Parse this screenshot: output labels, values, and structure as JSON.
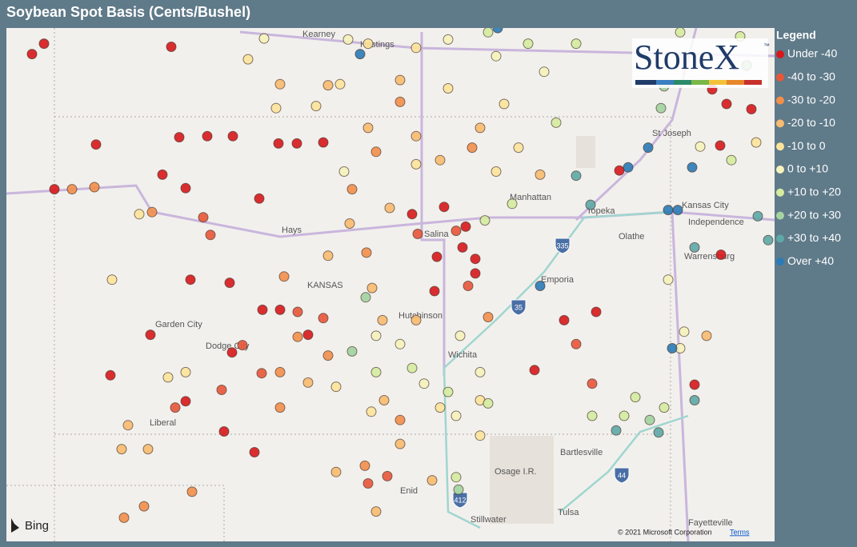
{
  "header": {
    "title": "Soybean Spot Basis (Cents/Bushel)"
  },
  "legend": {
    "title": "Legend",
    "items": [
      {
        "label": "Under -40",
        "color": "#d7191c"
      },
      {
        "label": "-40 to -30",
        "color": "#e8563a"
      },
      {
        "label": "-30 to -20",
        "color": "#f28f4b"
      },
      {
        "label": "-20 to -10",
        "color": "#f8bb6f"
      },
      {
        "label": "-10 to 0",
        "color": "#fde49a"
      },
      {
        "label": "0 to +10",
        "color": "#f6f3bd"
      },
      {
        "label": "+10 to +20",
        "color": "#d5ec9f"
      },
      {
        "label": "+20 to +30",
        "color": "#a3d3a0"
      },
      {
        "label": "+30 to +40",
        "color": "#5ea8a7"
      },
      {
        "label": "Over +40",
        "color": "#2b7bb6"
      }
    ]
  },
  "logo": {
    "text": "StoneX",
    "mark": "™"
  },
  "places": [
    "Kearney",
    "Hastings",
    "St Joseph",
    "Manhattan",
    "Topeka",
    "Kansas City",
    "Independence",
    "Hays",
    "Salina",
    "Olathe",
    "KANSAS",
    "Warrensburg",
    "Emporia",
    "Hutchinson",
    "Garden City",
    "Dodge City",
    "Wichita",
    "Liberal",
    "Bartlesville",
    "Osage I.R.",
    "Enid",
    "Tulsa",
    "Stillwater",
    "Fayetteville"
  ],
  "shields": [
    "335",
    "35",
    "44",
    "412"
  ],
  "attribution": {
    "provider": "Bing",
    "copyright": "© 2021 Microsoft Corporation",
    "terms": "Terms"
  },
  "points": [
    {
      "lon": -100.54,
      "lat": 40.67,
      "class": 0
    },
    {
      "lon": -102.28,
      "lat": 40.6,
      "class": 0
    },
    {
      "lon": -102.13,
      "lat": 40.7,
      "class": 0
    },
    {
      "lon": -100.44,
      "lat": 39.8,
      "class": 0
    },
    {
      "lon": -100.09,
      "lat": 39.81,
      "class": 0
    },
    {
      "lon": -99.77,
      "lat": 39.81,
      "class": 0
    },
    {
      "lon": -99.2,
      "lat": 39.74,
      "class": 0
    },
    {
      "lon": -98.97,
      "lat": 39.74,
      "class": 0
    },
    {
      "lon": -98.64,
      "lat": 39.75,
      "class": 0
    },
    {
      "lon": -100.65,
      "lat": 39.44,
      "class": 0
    },
    {
      "lon": -100.36,
      "lat": 39.31,
      "class": 0
    },
    {
      "lon": -99.44,
      "lat": 39.21,
      "class": 0
    },
    {
      "lon": -97.13,
      "lat": 39.13,
      "class": 0
    },
    {
      "lon": -97.53,
      "lat": 39.06,
      "class": 0
    },
    {
      "lon": -96.86,
      "lat": 38.94,
      "class": 0
    },
    {
      "lon": -97.22,
      "lat": 38.65,
      "class": 0
    },
    {
      "lon": -96.9,
      "lat": 38.74,
      "class": 0
    },
    {
      "lon": -96.74,
      "lat": 38.63,
      "class": 0
    },
    {
      "lon": -96.74,
      "lat": 38.49,
      "class": 0
    },
    {
      "lon": -100.3,
      "lat": 38.43,
      "class": 0
    },
    {
      "lon": -99.81,
      "lat": 38.4,
      "class": 0
    },
    {
      "lon": -99.4,
      "lat": 38.14,
      "class": 0
    },
    {
      "lon": -99.18,
      "lat": 38.14,
      "class": 0
    },
    {
      "lon": -98.83,
      "lat": 37.9,
      "class": 0
    },
    {
      "lon": -99.78,
      "lat": 37.73,
      "class": 0
    },
    {
      "lon": -100.36,
      "lat": 37.26,
      "class": 0
    },
    {
      "lon": -99.88,
      "lat": 36.97,
      "class": 0
    },
    {
      "lon": -100.8,
      "lat": 37.9,
      "class": 0
    },
    {
      "lon": -101.3,
      "lat": 37.51,
      "class": 0
    },
    {
      "lon": -93.78,
      "lat": 40.26,
      "class": 0
    },
    {
      "lon": -93.6,
      "lat": 40.12,
      "class": 0
    },
    {
      "lon": -93.29,
      "lat": 40.07,
      "class": 0
    },
    {
      "lon": -93.68,
      "lat": 39.72,
      "class": 0
    },
    {
      "lon": -95.23,
      "lat": 38.12,
      "class": 0
    },
    {
      "lon": -95.63,
      "lat": 38.04,
      "class": 0
    },
    {
      "lon": -96.0,
      "lat": 37.56,
      "class": 0
    },
    {
      "lon": -99.5,
      "lat": 36.77,
      "class": 0
    },
    {
      "lon": -94.94,
      "lat": 39.48,
      "class": 0
    },
    {
      "lon": -93.67,
      "lat": 38.67,
      "class": 0
    },
    {
      "lon": -94.0,
      "lat": 37.42,
      "class": 0
    },
    {
      "lon": -102.0,
      "lat": 39.3,
      "class": 0
    },
    {
      "lon": -101.48,
      "lat": 39.73,
      "class": 0
    },
    {
      "lon": -97.25,
      "lat": 38.32,
      "class": 0
    },
    {
      "lon": -100.14,
      "lat": 39.03,
      "class": 1
    },
    {
      "lon": -100.05,
      "lat": 38.86,
      "class": 1
    },
    {
      "lon": -98.64,
      "lat": 38.06,
      "class": 1
    },
    {
      "lon": -98.96,
      "lat": 38.12,
      "class": 1
    },
    {
      "lon": -99.65,
      "lat": 37.8,
      "class": 1
    },
    {
      "lon": -99.91,
      "lat": 37.37,
      "class": 1
    },
    {
      "lon": -99.41,
      "lat": 37.53,
      "class": 1
    },
    {
      "lon": -98.08,
      "lat": 36.47,
      "class": 1
    },
    {
      "lon": -95.48,
      "lat": 37.81,
      "class": 1
    },
    {
      "lon": -95.28,
      "lat": 37.43,
      "class": 1
    },
    {
      "lon": -96.98,
      "lat": 38.9,
      "class": 1
    },
    {
      "lon": -96.83,
      "lat": 38.37,
      "class": 1
    },
    {
      "lon": -97.84,
      "lat": 36.54,
      "class": 1
    },
    {
      "lon": -97.46,
      "lat": 38.87,
      "class": 1
    },
    {
      "lon": -100.49,
      "lat": 37.2,
      "class": 1
    },
    {
      "lon": -100.78,
      "lat": 39.08,
      "class": 2
    },
    {
      "lon": -101.5,
      "lat": 39.32,
      "class": 2
    },
    {
      "lon": -101.78,
      "lat": 39.3,
      "class": 2
    },
    {
      "lon": -98.1,
      "lat": 38.69,
      "class": 2
    },
    {
      "lon": -98.96,
      "lat": 37.88,
      "class": 2
    },
    {
      "lon": -99.18,
      "lat": 37.54,
      "class": 2
    },
    {
      "lon": -99.18,
      "lat": 37.2,
      "class": 2
    },
    {
      "lon": -100.28,
      "lat": 36.39,
      "class": 2
    },
    {
      "lon": -101.13,
      "lat": 36.14,
      "class": 2
    },
    {
      "lon": -100.88,
      "lat": 36.25,
      "class": 2
    },
    {
      "lon": -98.12,
      "lat": 36.64,
      "class": 2
    },
    {
      "lon": -97.68,
      "lat": 37.08,
      "class": 2
    },
    {
      "lon": -98.58,
      "lat": 37.7,
      "class": 2
    },
    {
      "lon": -99.13,
      "lat": 38.46,
      "class": 2
    },
    {
      "lon": -97.98,
      "lat": 39.66,
      "class": 2
    },
    {
      "lon": -97.68,
      "lat": 40.14,
      "class": 2
    },
    {
      "lon": -98.28,
      "lat": 39.3,
      "class": 2
    },
    {
      "lon": -96.78,
      "lat": 39.7,
      "class": 2
    },
    {
      "lon": -96.58,
      "lat": 38.07,
      "class": 2
    },
    {
      "lon": -99.18,
      "lat": 40.31,
      "class": 3
    },
    {
      "lon": -98.58,
      "lat": 40.3,
      "class": 3
    },
    {
      "lon": -97.68,
      "lat": 40.35,
      "class": 3
    },
    {
      "lon": -98.08,
      "lat": 39.89,
      "class": 3
    },
    {
      "lon": -97.48,
      "lat": 39.81,
      "class": 3
    },
    {
      "lon": -97.18,
      "lat": 39.58,
      "class": 3
    },
    {
      "lon": -96.68,
      "lat": 39.89,
      "class": 3
    },
    {
      "lon": -95.93,
      "lat": 39.44,
      "class": 3
    },
    {
      "lon": -97.81,
      "lat": 39.12,
      "class": 3
    },
    {
      "lon": -98.31,
      "lat": 38.97,
      "class": 3
    },
    {
      "lon": -98.58,
      "lat": 38.66,
      "class": 3
    },
    {
      "lon": -98.03,
      "lat": 38.35,
      "class": 3
    },
    {
      "lon": -97.9,
      "lat": 38.04,
      "class": 3
    },
    {
      "lon": -97.48,
      "lat": 38.04,
      "class": 3
    },
    {
      "lon": -97.88,
      "lat": 37.27,
      "class": 3
    },
    {
      "lon": -97.68,
      "lat": 36.85,
      "class": 3
    },
    {
      "lon": -97.28,
      "lat": 36.5,
      "class": 3
    },
    {
      "lon": -97.98,
      "lat": 36.2,
      "class": 3
    },
    {
      "lon": -98.48,
      "lat": 36.58,
      "class": 3
    },
    {
      "lon": -101.08,
      "lat": 37.03,
      "class": 3
    },
    {
      "lon": -101.16,
      "lat": 36.8,
      "class": 3
    },
    {
      "lon": -100.83,
      "lat": 36.8,
      "class": 3
    },
    {
      "lon": -98.83,
      "lat": 37.44,
      "class": 3
    },
    {
      "lon": -93.85,
      "lat": 37.89,
      "class": 3
    },
    {
      "lon": -99.58,
      "lat": 40.55,
      "class": 4
    },
    {
      "lon": -99.23,
      "lat": 40.08,
      "class": 4
    },
    {
      "lon": -98.73,
      "lat": 40.1,
      "class": 4
    },
    {
      "lon": -98.08,
      "lat": 40.7,
      "class": 4
    },
    {
      "lon": -97.48,
      "lat": 40.66,
      "class": 4
    },
    {
      "lon": -98.43,
      "lat": 40.31,
      "class": 4
    },
    {
      "lon": -97.08,
      "lat": 40.27,
      "class": 4
    },
    {
      "lon": -96.38,
      "lat": 40.12,
      "class": 4
    },
    {
      "lon": -96.2,
      "lat": 39.7,
      "class": 4
    },
    {
      "lon": -97.48,
      "lat": 39.54,
      "class": 4
    },
    {
      "lon": -96.48,
      "lat": 39.47,
      "class": 4
    },
    {
      "lon": -98.04,
      "lat": 37.16,
      "class": 4
    },
    {
      "lon": -98.48,
      "lat": 37.4,
      "class": 4
    },
    {
      "lon": -97.18,
      "lat": 37.2,
      "class": 4
    },
    {
      "lon": -96.68,
      "lat": 37.27,
      "class": 4
    },
    {
      "lon": -101.28,
      "lat": 38.43,
      "class": 4
    },
    {
      "lon": -100.94,
      "lat": 39.06,
      "class": 4
    },
    {
      "lon": -100.58,
      "lat": 37.49,
      "class": 4
    },
    {
      "lon": -100.36,
      "lat": 37.54,
      "class": 4
    },
    {
      "lon": -93.23,
      "lat": 39.75,
      "class": 4
    },
    {
      "lon": -96.68,
      "lat": 36.93,
      "class": 4
    },
    {
      "lon": -99.38,
      "lat": 40.75,
      "class": 5
    },
    {
      "lon": -98.33,
      "lat": 40.74,
      "class": 5
    },
    {
      "lon": -97.08,
      "lat": 40.74,
      "class": 5
    },
    {
      "lon": -96.48,
      "lat": 40.58,
      "class": 5
    },
    {
      "lon": -95.88,
      "lat": 40.43,
      "class": 5
    },
    {
      "lon": -97.98,
      "lat": 37.89,
      "class": 5
    },
    {
      "lon": -97.68,
      "lat": 37.81,
      "class": 5
    },
    {
      "lon": -97.38,
      "lat": 37.43,
      "class": 5
    },
    {
      "lon": -96.93,
      "lat": 37.89,
      "class": 5
    },
    {
      "lon": -96.68,
      "lat": 37.54,
      "class": 5
    },
    {
      "lon": -96.98,
      "lat": 37.12,
      "class": 5
    },
    {
      "lon": -94.13,
      "lat": 37.93,
      "class": 5
    },
    {
      "lon": -94.18,
      "lat": 37.77,
      "class": 5
    },
    {
      "lon": -94.33,
      "lat": 38.43,
      "class": 5
    },
    {
      "lon": -93.93,
      "lat": 39.71,
      "class": 5
    },
    {
      "lon": -98.38,
      "lat": 39.47,
      "class": 5
    },
    {
      "lon": -96.08,
      "lat": 40.7,
      "class": 6
    },
    {
      "lon": -95.48,
      "lat": 40.7,
      "class": 6
    },
    {
      "lon": -94.18,
      "lat": 40.81,
      "class": 6
    },
    {
      "lon": -96.58,
      "lat": 40.81,
      "class": 6
    },
    {
      "lon": -97.98,
      "lat": 37.54,
      "class": 6
    },
    {
      "lon": -97.53,
      "lat": 37.58,
      "class": 6
    },
    {
      "lon": -97.08,
      "lat": 37.35,
      "class": 6
    },
    {
      "lon": -96.58,
      "lat": 37.24,
      "class": 6
    },
    {
      "lon": -95.28,
      "lat": 37.12,
      "class": 6
    },
    {
      "lon": -94.88,
      "lat": 37.12,
      "class": 6
    },
    {
      "lon": -94.74,
      "lat": 37.3,
      "class": 6
    },
    {
      "lon": -94.38,
      "lat": 37.2,
      "class": 6
    },
    {
      "lon": -93.54,
      "lat": 39.58,
      "class": 6
    },
    {
      "lon": -96.62,
      "lat": 39.0,
      "class": 6
    },
    {
      "lon": -96.28,
      "lat": 39.16,
      "class": 6
    },
    {
      "lon": -95.73,
      "lat": 39.94,
      "class": 6
    },
    {
      "lon": -93.43,
      "lat": 40.77,
      "class": 6
    },
    {
      "lon": -96.98,
      "lat": 36.53,
      "class": 6
    },
    {
      "lon": -94.38,
      "lat": 40.29,
      "class": 7
    },
    {
      "lon": -94.42,
      "lat": 40.08,
      "class": 7
    },
    {
      "lon": -98.28,
      "lat": 37.74,
      "class": 7
    },
    {
      "lon": -94.56,
      "lat": 37.08,
      "class": 7
    },
    {
      "lon": -98.11,
      "lat": 38.26,
      "class": 7
    },
    {
      "lon": -96.95,
      "lat": 36.41,
      "class": 7
    },
    {
      "lon": -93.35,
      "lat": 40.49,
      "class": 7
    },
    {
      "lon": -95.48,
      "lat": 39.43,
      "class": 8
    },
    {
      "lon": -95.3,
      "lat": 39.15,
      "class": 8
    },
    {
      "lon": -94.0,
      "lat": 38.74,
      "class": 8
    },
    {
      "lon": -93.21,
      "lat": 39.04,
      "class": 8
    },
    {
      "lon": -93.08,
      "lat": 38.81,
      "class": 8
    },
    {
      "lon": -94.45,
      "lat": 36.96,
      "class": 8
    },
    {
      "lon": -94.0,
      "lat": 37.27,
      "class": 8
    },
    {
      "lon": -94.98,
      "lat": 36.98,
      "class": 8
    },
    {
      "lon": -98.18,
      "lat": 40.6,
      "class": 9
    },
    {
      "lon": -94.58,
      "lat": 39.7,
      "class": 9
    },
    {
      "lon": -94.83,
      "lat": 39.51,
      "class": 9
    },
    {
      "lon": -94.03,
      "lat": 39.51,
      "class": 9
    },
    {
      "lon": -94.33,
      "lat": 39.1,
      "class": 9
    },
    {
      "lon": -94.21,
      "lat": 39.1,
      "class": 9
    },
    {
      "lon": -94.28,
      "lat": 37.77,
      "class": 9
    },
    {
      "lon": -95.93,
      "lat": 38.37,
      "class": 9
    },
    {
      "lon": -96.46,
      "lat": 40.85,
      "class": 9
    }
  ]
}
